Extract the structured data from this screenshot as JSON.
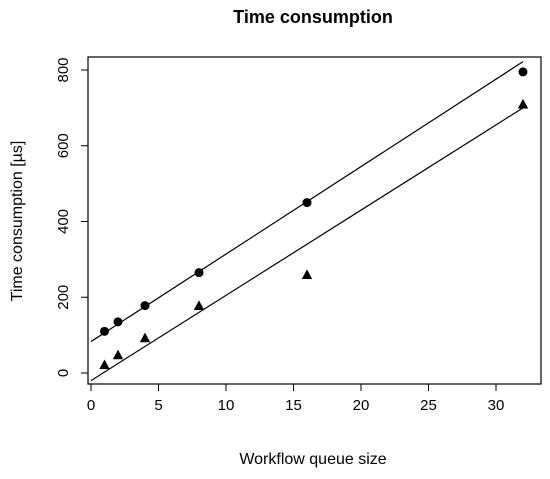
{
  "chart_data": {
    "type": "scatter",
    "title": "Time consumption",
    "xlabel": "Workflow queue size",
    "ylabel": "Time consumption [µs]",
    "xlim": [
      0,
      32
    ],
    "ylim": [
      -30,
      840
    ],
    "x_ticks": [
      0,
      5,
      10,
      15,
      20,
      25,
      30
    ],
    "y_ticks": [
      0,
      200,
      400,
      600,
      800
    ],
    "grid": false,
    "legend": "none",
    "series": [
      {
        "marker": "circle",
        "color": "#000000",
        "points": [
          {
            "x": 1,
            "y": 110
          },
          {
            "x": 2,
            "y": 135
          },
          {
            "x": 4,
            "y": 178
          },
          {
            "x": 8,
            "y": 265
          },
          {
            "x": 16,
            "y": 450
          },
          {
            "x": 32,
            "y": 795
          }
        ]
      },
      {
        "marker": "triangle",
        "color": "#000000",
        "points": [
          {
            "x": 1,
            "y": 22
          },
          {
            "x": 2,
            "y": 48
          },
          {
            "x": 4,
            "y": 93
          },
          {
            "x": 8,
            "y": 178
          },
          {
            "x": 16,
            "y": 260
          },
          {
            "x": 32,
            "y": 710
          }
        ]
      }
    ],
    "fit_lines": [
      {
        "x1": 0,
        "y1": 83,
        "x2": 32,
        "y2": 822
      },
      {
        "x1": 0,
        "y1": -20,
        "x2": 32,
        "y2": 700
      }
    ]
  }
}
